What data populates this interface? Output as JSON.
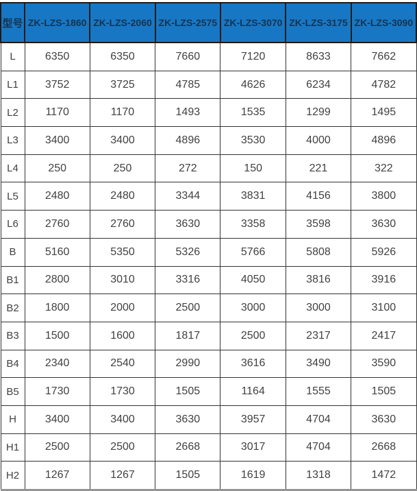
{
  "colors": {
    "header_bg": "#1777c4",
    "header_text": "#16334e",
    "body_text": "#414141",
    "grid_border": "#333333",
    "header_grid_border": "#1b1b1b",
    "outer_bottom_border": "#949494",
    "page_bg": "#ffffff"
  },
  "table": {
    "corner_label": "型号",
    "columns": [
      "ZK-LZS-1860",
      "ZK-LZS-2060",
      "ZK-LZS-2575",
      "ZK-LZS-3070",
      "ZK-LZS-3175",
      "ZK-LZS-3090"
    ],
    "rows": [
      {
        "label": "L",
        "values": [
          "6350",
          "6350",
          "7660",
          "7120",
          "8633",
          "7662"
        ]
      },
      {
        "label": "L1",
        "values": [
          "3752",
          "3725",
          "4785",
          "4626",
          "6234",
          "4782"
        ]
      },
      {
        "label": "L2",
        "values": [
          "1170",
          "1170",
          "1493",
          "1535",
          "1299",
          "1495"
        ]
      },
      {
        "label": "L3",
        "values": [
          "3400",
          "3400",
          "4896",
          "3530",
          "4000",
          "4896"
        ]
      },
      {
        "label": "L4",
        "values": [
          "250",
          "250",
          "272",
          "150",
          "221",
          "322"
        ]
      },
      {
        "label": "L5",
        "values": [
          "2480",
          "2480",
          "3344",
          "3831",
          "4156",
          "3800"
        ]
      },
      {
        "label": "L6",
        "values": [
          "2760",
          "2760",
          "3630",
          "3358",
          "3598",
          "3630"
        ]
      },
      {
        "label": "B",
        "values": [
          "5160",
          "5350",
          "5326",
          "5766",
          "5808",
          "5926"
        ]
      },
      {
        "label": "B1",
        "values": [
          "2800",
          "3010",
          "3316",
          "4050",
          "3816",
          "3916"
        ]
      },
      {
        "label": "B2",
        "values": [
          "1800",
          "2000",
          "2500",
          "3000",
          "3000",
          "3100"
        ]
      },
      {
        "label": "B3",
        "values": [
          "1500",
          "1600",
          "1817",
          "2500",
          "2317",
          "2417"
        ]
      },
      {
        "label": "B4",
        "values": [
          "2340",
          "2540",
          "2990",
          "3616",
          "3490",
          "3590"
        ]
      },
      {
        "label": "B5",
        "values": [
          "1730",
          "1730",
          "1505",
          "1164",
          "1555",
          "1505"
        ]
      },
      {
        "label": "H",
        "values": [
          "3400",
          "3400",
          "3630",
          "3957",
          "4704",
          "3630"
        ]
      },
      {
        "label": "H1",
        "values": [
          "2500",
          "2500",
          "2668",
          "3017",
          "4704",
          "2668"
        ]
      },
      {
        "label": "H2",
        "values": [
          "1267",
          "1267",
          "1505",
          "1619",
          "1318",
          "1472"
        ]
      }
    ]
  },
  "chart_data": {
    "type": "table",
    "title": "",
    "corner_label": "型号",
    "columns": [
      "ZK-LZS-1860",
      "ZK-LZS-2060",
      "ZK-LZS-2575",
      "ZK-LZS-3070",
      "ZK-LZS-3175",
      "ZK-LZS-3090"
    ],
    "row_labels": [
      "L",
      "L1",
      "L2",
      "L3",
      "L4",
      "L5",
      "L6",
      "B",
      "B1",
      "B2",
      "B3",
      "B4",
      "B5",
      "H",
      "H1",
      "H2"
    ],
    "series": [
      {
        "name": "ZK-LZS-1860",
        "values": [
          6350,
          3752,
          1170,
          3400,
          250,
          2480,
          2760,
          5160,
          2800,
          1800,
          1500,
          2340,
          1730,
          3400,
          2500,
          1267
        ]
      },
      {
        "name": "ZK-LZS-2060",
        "values": [
          6350,
          3725,
          1170,
          3400,
          250,
          2480,
          2760,
          5350,
          3010,
          2000,
          1600,
          2540,
          1730,
          3400,
          2500,
          1267
        ]
      },
      {
        "name": "ZK-LZS-2575",
        "values": [
          7660,
          4785,
          1493,
          4896,
          272,
          3344,
          3630,
          5326,
          3316,
          2500,
          1817,
          2990,
          1505,
          3630,
          2668,
          1505
        ]
      },
      {
        "name": "ZK-LZS-3070",
        "values": [
          7120,
          4626,
          1535,
          3530,
          150,
          3831,
          3358,
          5766,
          4050,
          3000,
          2500,
          3616,
          1164,
          3957,
          3017,
          1619
        ]
      },
      {
        "name": "ZK-LZS-3175",
        "values": [
          8633,
          6234,
          1299,
          4000,
          221,
          4156,
          3598,
          5808,
          3816,
          3000,
          2317,
          3490,
          1555,
          4704,
          4704,
          1318
        ]
      },
      {
        "name": "ZK-LZS-3090",
        "values": [
          7662,
          4782,
          1495,
          4896,
          322,
          3800,
          3630,
          5926,
          3916,
          3100,
          2417,
          3590,
          1505,
          3630,
          2668,
          1472
        ]
      }
    ]
  }
}
